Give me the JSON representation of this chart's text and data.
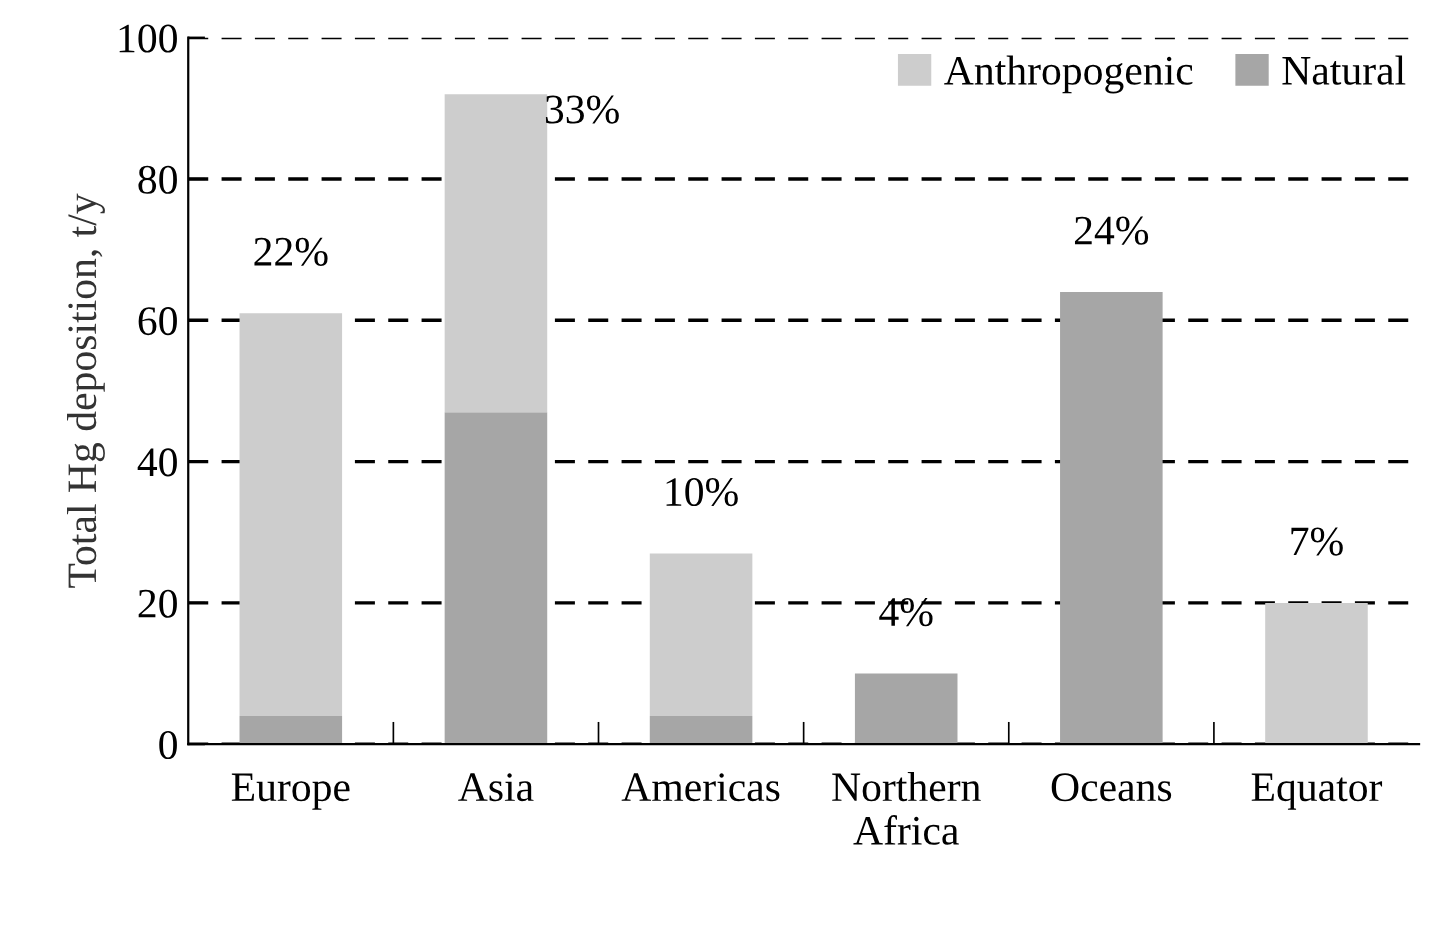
{
  "chart_data": {
    "type": "bar",
    "stacked": true,
    "ylabel": "Total Hg deposition, t/y",
    "categories": [
      "Europe",
      "Asia",
      "Americas",
      "Northern\nAfrica",
      "Oceans",
      "Equator"
    ],
    "series": [
      {
        "name": "Natural",
        "color": "#a6a6a6",
        "values": [
          4,
          47,
          4,
          10,
          64,
          0
        ]
      },
      {
        "name": "Anthropogenic",
        "color": "#cdcdcd",
        "values": [
          57,
          45,
          23,
          0,
          0,
          20
        ]
      }
    ],
    "ylim": [
      0,
      100
    ],
    "yticks": [
      0,
      20,
      40,
      60,
      80,
      100
    ],
    "grid": "y",
    "legend": "top right",
    "annotations": [
      {
        "text": "22%",
        "x": "Europe",
        "y": 61
      },
      {
        "text": "33%",
        "x": "Asia",
        "y": 92
      },
      {
        "text": "10%",
        "x": "Americas",
        "y": 27
      },
      {
        "text": "4%",
        "x": "Northern\nAfrica",
        "y": 10
      },
      {
        "text": "24%",
        "x": "Oceans",
        "y": 64
      },
      {
        "text": "7%",
        "x": "Equator",
        "y": 20
      }
    ]
  }
}
